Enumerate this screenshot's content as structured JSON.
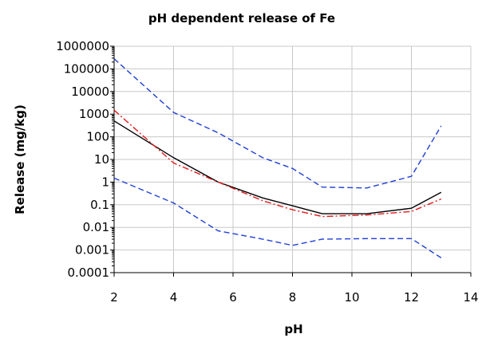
{
  "chart_data": {
    "type": "line",
    "title": "pH dependent release of Fe",
    "xlabel": "pH",
    "ylabel": "Release (mg/kg)",
    "xlim": [
      2,
      14
    ],
    "ylim": [
      0.0001,
      1000000
    ],
    "y_scale": "log",
    "grid": true,
    "x_ticks": [
      "2",
      "4",
      "6",
      "8",
      "10",
      "12",
      "14"
    ],
    "y_ticks": [
      "0.0001",
      "0.001",
      "0.01",
      "0.1",
      "1",
      "10",
      "100",
      "1000",
      "10000",
      "100000",
      "1000000"
    ],
    "series": [
      {
        "color": "#000000",
        "style": "solid",
        "points": [
          [
            2,
            500
          ],
          [
            4,
            12
          ],
          [
            5.5,
            1
          ],
          [
            7,
            0.2
          ],
          [
            8,
            0.09
          ],
          [
            9,
            0.04
          ],
          [
            10.5,
            0.04
          ],
          [
            12,
            0.07
          ],
          [
            13,
            0.35
          ]
        ]
      },
      {
        "color": "#e31a1c",
        "style": "dashdot",
        "points": [
          [
            2,
            1500
          ],
          [
            4,
            7
          ],
          [
            5.5,
            1
          ],
          [
            7,
            0.15
          ],
          [
            8,
            0.06
          ],
          [
            9,
            0.03
          ],
          [
            10.5,
            0.035
          ],
          [
            12,
            0.05
          ],
          [
            13,
            0.18
          ]
        ]
      },
      {
        "color": "#1f3fd6",
        "style": "dashed",
        "points": [
          [
            2,
            280000
          ],
          [
            4,
            1200
          ],
          [
            5.5,
            150
          ],
          [
            7,
            12
          ],
          [
            8,
            4
          ],
          [
            9,
            0.6
          ],
          [
            10.5,
            0.55
          ],
          [
            12,
            1.8
          ],
          [
            13,
            300
          ]
        ]
      },
      {
        "color": "#1f3fd6",
        "style": "dashed",
        "points": [
          [
            2,
            1.5
          ],
          [
            4,
            0.12
          ],
          [
            5.5,
            0.007
          ],
          [
            7,
            0.003
          ],
          [
            8,
            0.0016
          ],
          [
            9,
            0.003
          ],
          [
            10.5,
            0.0032
          ],
          [
            12,
            0.0032
          ],
          [
            13,
            0.00045
          ]
        ]
      }
    ]
  }
}
